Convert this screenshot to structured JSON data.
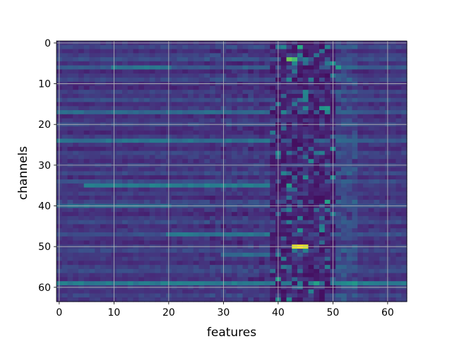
{
  "chart_data": {
    "type": "heatmap",
    "title": "",
    "xlabel": "features",
    "ylabel": "channels",
    "n_cols": 64,
    "n_rows": 64,
    "xlim": [
      -0.5,
      63.5
    ],
    "ylim": [
      63.5,
      -0.5
    ],
    "y_axis_inverted": true,
    "x_ticks": [
      0,
      10,
      20,
      30,
      40,
      50,
      60
    ],
    "y_ticks": [
      0,
      10,
      20,
      30,
      40,
      50,
      60
    ],
    "grid": true,
    "colormap": "viridis",
    "value_range": [
      0,
      1
    ],
    "default_value": 0.14,
    "row_background": [
      0.16,
      0.22,
      0.14,
      0.19,
      0.24,
      0.15,
      0.28,
      0.13,
      0.18,
      0.22,
      0.15,
      0.12,
      0.2,
      0.16,
      0.24,
      0.14,
      0.18,
      0.26,
      0.13,
      0.17,
      0.22,
      0.15,
      0.12,
      0.19,
      0.28,
      0.16,
      0.13,
      0.21,
      0.18,
      0.14,
      0.2,
      0.16,
      0.22,
      0.13,
      0.24,
      0.17,
      0.15,
      0.19,
      0.14,
      0.21,
      0.26,
      0.15,
      0.13,
      0.18,
      0.22,
      0.14,
      0.17,
      0.25,
      0.16,
      0.13,
      0.19,
      0.22,
      0.15,
      0.18,
      0.14,
      0.2,
      0.23,
      0.16,
      0.14,
      0.32,
      0.18,
      0.15,
      0.21,
      0.17
    ],
    "bright_bands": [
      {
        "row": 6,
        "x_start": 10,
        "x_end": 20,
        "value": 0.4
      },
      {
        "row": 17,
        "x_start": 0,
        "x_end": 38,
        "value": 0.35
      },
      {
        "row": 24,
        "x_start": 0,
        "x_end": 38,
        "value": 0.38
      },
      {
        "row": 35,
        "x_start": 5,
        "x_end": 38,
        "value": 0.42
      },
      {
        "row": 40,
        "x_start": 0,
        "x_end": 20,
        "value": 0.36
      },
      {
        "row": 47,
        "x_start": 20,
        "x_end": 38,
        "value": 0.4
      },
      {
        "row": 59,
        "x_start": 0,
        "x_end": 63,
        "value": 0.42
      },
      {
        "row": 52,
        "x_start": 30,
        "x_end": 38,
        "value": 0.36
      }
    ],
    "dark_column_region": {
      "x_start": 39,
      "x_end": 50,
      "value": 0.04
    },
    "highlights": [
      {
        "row": 1,
        "col": 44,
        "value": 0.62
      },
      {
        "row": 4,
        "col": 42,
        "value": 0.78
      },
      {
        "row": 4,
        "col": 43,
        "value": 0.7
      },
      {
        "row": 6,
        "col": 51,
        "value": 0.55
      },
      {
        "row": 5,
        "col": 50,
        "value": 0.5
      },
      {
        "row": 16,
        "col": 48,
        "value": 0.52
      },
      {
        "row": 16,
        "col": 49,
        "value": 0.55
      },
      {
        "row": 35,
        "col": 42,
        "value": 0.55
      },
      {
        "row": 39,
        "col": 49,
        "value": 0.58
      },
      {
        "row": 46,
        "col": 44,
        "value": 0.5
      },
      {
        "row": 50,
        "col": 43,
        "value": 0.96
      },
      {
        "row": 50,
        "col": 44,
        "value": 0.99
      },
      {
        "row": 50,
        "col": 45,
        "value": 0.95
      },
      {
        "row": 58,
        "col": 40,
        "value": 0.55
      },
      {
        "row": 59,
        "col": 47,
        "value": 0.58
      }
    ]
  }
}
